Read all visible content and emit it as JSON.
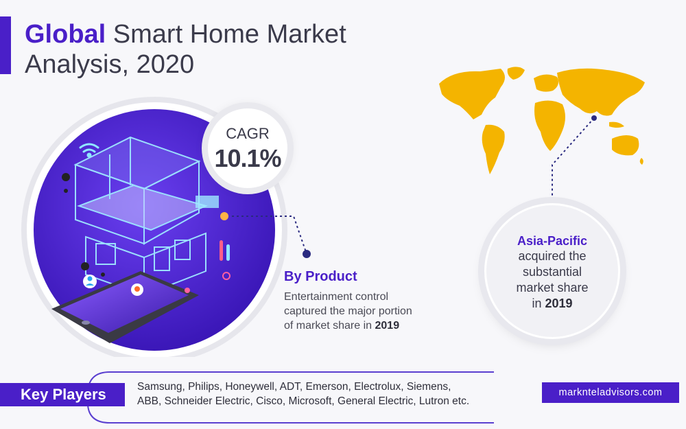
{
  "title": {
    "highlight": "Global",
    "rest_line1": " Smart Home Market",
    "line2": "Analysis, 2020"
  },
  "cagr": {
    "label": "CAGR",
    "value": "10.1%"
  },
  "by_product": {
    "heading": "By Product",
    "text_line1": "Entertainment control",
    "text_line2": "captured the major portion",
    "text_line3_prefix": "of market share in ",
    "year": "2019"
  },
  "region": {
    "name": "Asia-Pacific",
    "line1": "acquired the",
    "line2": "substantial",
    "line3": "market share",
    "line4_prefix": "in ",
    "year": "2019"
  },
  "key_players": {
    "label": "Key Players",
    "line1": "Samsung, Philips, Honeywell, ADT, Emerson, Electrolux, Siemens,",
    "line2": "ABB, Schneider Electric, Cisco, Microsoft, General Electric, Lutron etc."
  },
  "website": "marknteladvisors.com",
  "colors": {
    "brand_purple": "#4a1fc8",
    "map_yellow": "#f4b400",
    "text_dark": "#3a3a4a",
    "background": "#f7f7fa"
  },
  "icons": [
    "wifi-icon",
    "person-icon",
    "location-pin-icon",
    "thermometer-icon",
    "smart-home-illustration",
    "tablet-illustration",
    "world-map"
  ]
}
